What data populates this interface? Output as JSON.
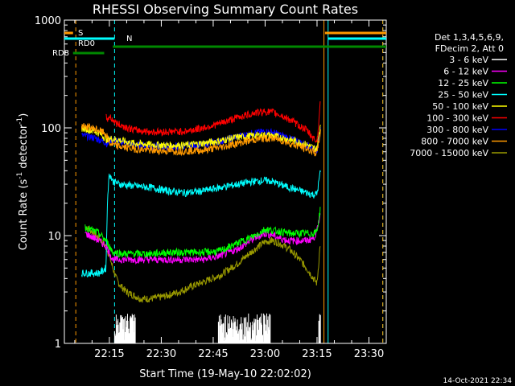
{
  "chart_data": {
    "type": "line",
    "title": "RHESSI Observing Summary Count Rates",
    "xlabel": "Start Time (19-May-10 22:02:02)",
    "ylabel": "Count Rate (s",
    "ylabel_sup1": "-1",
    "ylabel_mid": " detector",
    "ylabel_sup2": "-1",
    "ylabel_end": ")",
    "y_scale": "log",
    "ylim": [
      1,
      1000
    ],
    "xlim_minutes": [
      0,
      93
    ],
    "x_ticks": [
      {
        "minute": 13,
        "label": "22:15"
      },
      {
        "minute": 28,
        "label": "22:30"
      },
      {
        "minute": 43,
        "label": "22:45"
      },
      {
        "minute": 58,
        "label": "23:00"
      },
      {
        "minute": 73,
        "label": "23:15"
      },
      {
        "minute": 88,
        "label": "23:30"
      }
    ],
    "y_ticks": [
      {
        "value": 1,
        "label": "1"
      },
      {
        "value": 10,
        "label": "10"
      },
      {
        "value": 100,
        "label": "100"
      },
      {
        "value": 1000,
        "label": "1000"
      }
    ],
    "legend_header": [
      "Det 1,3,4,5,6,9,",
      "FDecim 2, Att 0"
    ],
    "legend_position": "right",
    "grid": false,
    "series": [
      {
        "name": "3 - 6 keV",
        "color": "#ffffff",
        "style": "spiky",
        "x": [
          0,
          14,
          14.5,
          15,
          16,
          17,
          18,
          19,
          20,
          20.5,
          21,
          25,
          44,
          44.5,
          46,
          48,
          50,
          52,
          54,
          56,
          58,
          59,
          59.5,
          61,
          72,
          73,
          73.5,
          74,
          74.5
        ],
        "y": [
          null,
          null,
          1.9,
          1.2,
          1.9,
          1.2,
          1.9,
          1.2,
          1.9,
          1.1,
          null,
          null,
          null,
          1.9,
          1.2,
          1.9,
          1.2,
          1.9,
          1.2,
          1.9,
          1.2,
          1.9,
          1.1,
          null,
          null,
          null,
          1.5,
          8,
          null
        ]
      },
      {
        "name": "6 - 12 keV",
        "color": "#ff00ff",
        "x": [
          6,
          10,
          12,
          13,
          14,
          17,
          20,
          25,
          30,
          35,
          40,
          45,
          50,
          55,
          58,
          60,
          62,
          65,
          70,
          72,
          73,
          74
        ],
        "y": [
          10.5,
          9,
          8,
          7,
          6,
          6,
          6,
          6,
          6,
          6,
          6,
          6.5,
          7.5,
          9.5,
          10.5,
          10.2,
          9.5,
          9,
          9,
          9.5,
          11,
          17
        ]
      },
      {
        "name": "12 - 25 keV",
        "color": "#00ff00",
        "x": [
          6,
          10,
          12,
          13,
          14,
          17,
          20,
          25,
          30,
          35,
          40,
          45,
          50,
          55,
          58,
          60,
          62,
          65,
          70,
          72,
          73,
          74
        ],
        "y": [
          12,
          10.5,
          9,
          8,
          7,
          6.8,
          6.8,
          6.8,
          7,
          7,
          7,
          7.2,
          8.5,
          10,
          11.5,
          11.2,
          11,
          10.5,
          10.5,
          10.5,
          11,
          18
        ]
      },
      {
        "name": "25 - 50 keV",
        "color": "#00ffff",
        "x": [
          5,
          8,
          10,
          11,
          12,
          12.5,
          13,
          14,
          16,
          20,
          25,
          30,
          35,
          40,
          45,
          50,
          55,
          58,
          60,
          62,
          65,
          70,
          72,
          73,
          74
        ],
        "y": [
          4.5,
          4.5,
          4.5,
          4.7,
          5,
          24,
          38,
          32,
          30,
          29,
          28,
          26,
          25,
          26,
          28,
          30,
          32,
          32.5,
          32,
          30,
          28,
          25,
          24,
          24.5,
          40
        ]
      },
      {
        "name": "50 - 100 keV",
        "color": "#ffff00",
        "x": [
          5,
          8,
          10,
          12,
          12.5,
          13,
          15,
          20,
          25,
          30,
          35,
          40,
          45,
          50,
          55,
          58,
          60,
          62,
          65,
          70,
          72,
          73,
          74
        ],
        "y": [
          100,
          95,
          90,
          80,
          75,
          80,
          78,
          72,
          70,
          69,
          69,
          72,
          76,
          82,
          85,
          86,
          85,
          82,
          78,
          70,
          65,
          64,
          110
        ]
      },
      {
        "name": "100 - 300 keV",
        "color": "#ff0000",
        "x": [
          12,
          12.5,
          13,
          15,
          20,
          25,
          30,
          35,
          40,
          45,
          50,
          55,
          58,
          60,
          62,
          65,
          70,
          72,
          73,
          74
        ],
        "y": [
          125,
          120,
          128,
          110,
          96,
          92,
          92,
          93,
          100,
          110,
          125,
          138,
          142,
          140,
          133,
          120,
          95,
          80,
          75,
          175
        ]
      },
      {
        "name": "300 - 800 keV",
        "color": "#0000ff",
        "x": [
          5,
          8,
          10,
          12,
          12.5,
          13,
          15,
          20,
          25,
          30,
          35,
          40,
          45,
          50,
          55,
          58,
          60,
          62,
          65,
          70,
          72,
          73,
          74
        ],
        "y": [
          85,
          82,
          78,
          73,
          70,
          78,
          76,
          70,
          68,
          67,
          68,
          70,
          75,
          83,
          90,
          92,
          91,
          87,
          80,
          70,
          64,
          62,
          95
        ]
      },
      {
        "name": "800 - 7000 keV",
        "color": "#ff9900",
        "x": [
          5,
          8,
          10,
          12,
          12.5,
          13,
          15,
          20,
          25,
          30,
          35,
          40,
          45,
          50,
          55,
          58,
          60,
          62,
          65,
          70,
          72,
          73,
          74
        ],
        "y": [
          105,
          100,
          95,
          88,
          80,
          72,
          68,
          64,
          62,
          61,
          61,
          62,
          66,
          72,
          78,
          80,
          80,
          78,
          72,
          64,
          60,
          58,
          95
        ]
      },
      {
        "name": "7000 - 15000 keV",
        "color": "#999900",
        "x": [
          6,
          8,
          10,
          12,
          13,
          14,
          15,
          16,
          18,
          20,
          22,
          25,
          28,
          30,
          33,
          36,
          40,
          45,
          50,
          55,
          58,
          60,
          62,
          65,
          68,
          70,
          72,
          73,
          74
        ],
        "y": [
          12,
          11,
          9.5,
          8,
          6.5,
          5,
          4,
          3.5,
          3,
          2.8,
          2.6,
          2.6,
          2.7,
          2.8,
          3,
          3.3,
          3.7,
          4.3,
          5.5,
          7.5,
          8.8,
          9,
          8.6,
          7.5,
          6,
          5,
          4,
          3.6,
          9
        ]
      }
    ],
    "spike_markers": [
      {
        "color": "#ff9900",
        "minute": 3.3,
        "style": "dashed"
      },
      {
        "color": "#00ffff",
        "minute": 14.5,
        "style": "dashed"
      },
      {
        "color": "#ff9900",
        "minute": 75,
        "style": "solid"
      },
      {
        "color": "#00ffff",
        "minute": 0,
        "style": "solid"
      },
      {
        "color": "#00ffff",
        "minute": 76.2,
        "style": "solid"
      },
      {
        "color": "#00ffff",
        "minute": 92,
        "style": "dashed"
      },
      {
        "color": "#ff9900",
        "minute": 92,
        "style": "dashed"
      }
    ],
    "flag_bars": [
      {
        "label": "S",
        "color": "#ff9900",
        "segments": [
          [
            0,
            2.5
          ],
          [
            75.3,
            93
          ]
        ]
      },
      {
        "label": "N",
        "color": "#00ffff",
        "segments": [
          [
            0,
            14.5
          ],
          [
            76.2,
            93
          ]
        ]
      },
      {
        "label": "RD0",
        "color": "#008800",
        "segments": [
          [
            14,
            93
          ]
        ]
      },
      {
        "label": "RD8",
        "color": "#008800",
        "segments": [
          [
            2.5,
            11.5
          ]
        ]
      }
    ]
  },
  "timestamp": "14-Oct-2021 22:34"
}
